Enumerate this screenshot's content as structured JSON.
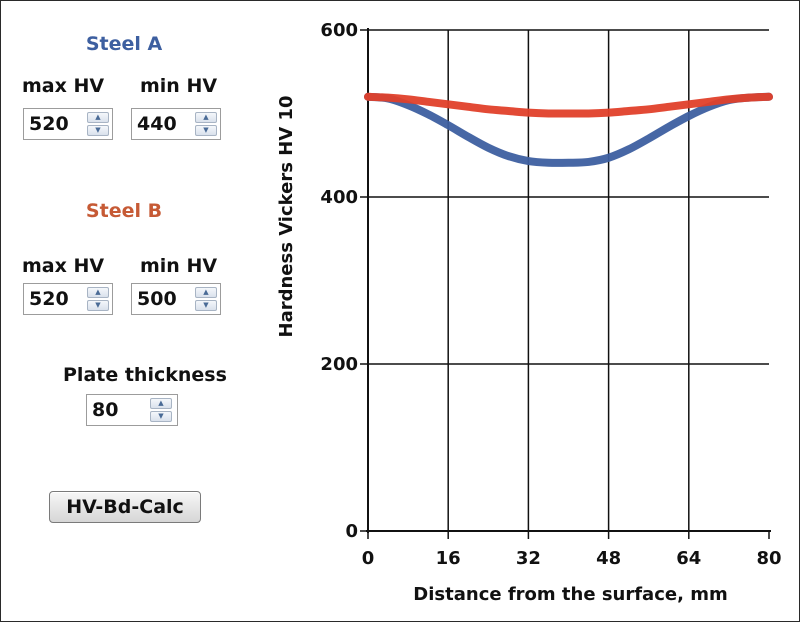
{
  "steel_a": {
    "heading": "Steel A",
    "color": "#3d5fa0",
    "max_label": "max HV",
    "min_label": "min HV",
    "max_value": "520",
    "min_value": "440"
  },
  "steel_b": {
    "heading": "Steel B",
    "color": "#c65a35",
    "max_label": "max HV",
    "min_label": "min HV",
    "max_value": "520",
    "min_value": "500"
  },
  "plate": {
    "label": "Plate thickness",
    "value": "80"
  },
  "calc_button": {
    "label": "HV-Bd-Calc"
  },
  "icons": {
    "spinner_up": "spinner-up-icon",
    "spinner_down": "spinner-down-icon"
  },
  "chart_data": {
    "type": "line",
    "xlabel": "Distance from the surface, mm",
    "ylabel": "Hardness Vickers HV 10",
    "xlim": [
      0,
      80
    ],
    "ylim": [
      0,
      600
    ],
    "x_ticks": [
      "0",
      "16",
      "32",
      "48",
      "64",
      "80"
    ],
    "y_ticks": [
      "0",
      "200",
      "400",
      "600"
    ],
    "grid": true,
    "series": [
      {
        "color": "#3d5fa0",
        "x": [
          0,
          4,
          8,
          12,
          16,
          20,
          24,
          28,
          32,
          36,
          40,
          44,
          48,
          52,
          56,
          60,
          64,
          68,
          72,
          76,
          80
        ],
        "y": [
          520,
          518,
          510,
          499,
          486,
          472,
          459,
          449,
          443,
          441,
          441,
          442,
          447,
          457,
          470,
          484,
          497,
          508,
          516,
          519,
          520
        ]
      },
      {
        "color": "#e0402a",
        "x": [
          0,
          4,
          8,
          12,
          16,
          20,
          24,
          28,
          32,
          36,
          40,
          44,
          48,
          52,
          56,
          60,
          64,
          68,
          72,
          76,
          80
        ],
        "y": [
          520,
          519,
          517,
          514,
          511,
          508,
          505,
          503,
          501,
          500,
          500,
          500,
          501,
          503,
          505,
          508,
          511,
          514,
          517,
          519,
          520
        ]
      }
    ]
  }
}
